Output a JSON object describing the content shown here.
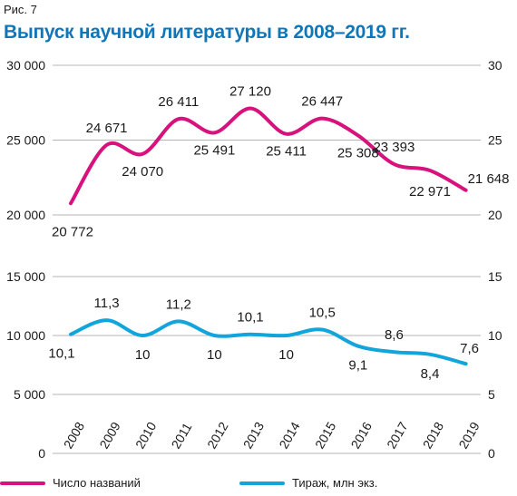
{
  "figure_label": "Рис. 7",
  "title": "Выпуск научной литературы в 2008–2019 гг.",
  "colors": {
    "titles": "#d7127d",
    "circulation": "#12a5dc",
    "title_text": "#0f76b8",
    "grid": "#b5b5b5"
  },
  "chart_data": {
    "type": "line",
    "x": [
      "2008",
      "2009",
      "2010",
      "2011",
      "2012",
      "2013",
      "2014",
      "2015",
      "2016",
      "2017",
      "2018",
      "2019"
    ],
    "series": [
      {
        "name": "Число названий",
        "axis": "left-upper",
        "values": [
          20772,
          24671,
          24070,
          26411,
          25491,
          27120,
          25411,
          26447,
          25308,
          23393,
          22971,
          21648
        ],
        "labels": [
          "20 772",
          "24 671",
          "24 070",
          "26 411",
          "25 491",
          "27 120",
          "25 411",
          "26 447",
          "25 308",
          "23 393",
          "22 971",
          "21 648"
        ]
      },
      {
        "name": "Тираж, млн экз.",
        "axis": "left-lower",
        "values": [
          10.1,
          11.3,
          10,
          11.2,
          10,
          10.1,
          10,
          10.5,
          9.1,
          8.6,
          8.4,
          7.6
        ],
        "labels": [
          "10,1",
          "11,3",
          "10",
          "11,2",
          "10",
          "10,1",
          "10",
          "10,5",
          "9,1",
          "8,6",
          "8,4",
          "7,6"
        ]
      }
    ],
    "upper_axis": {
      "left_range": [
        20000,
        30000
      ],
      "left_ticks": [
        "30 000",
        "25 000",
        "20 000"
      ],
      "right_ticks": [
        "30",
        "25",
        "20"
      ]
    },
    "lower_axis": {
      "left_range": [
        0,
        15000
      ],
      "left_ticks": [
        "15 000",
        "10 000",
        "5 000",
        "0"
      ],
      "right_ticks": [
        "15",
        "10",
        "5",
        "0"
      ]
    },
    "grid": true,
    "legend_position": "bottom"
  }
}
